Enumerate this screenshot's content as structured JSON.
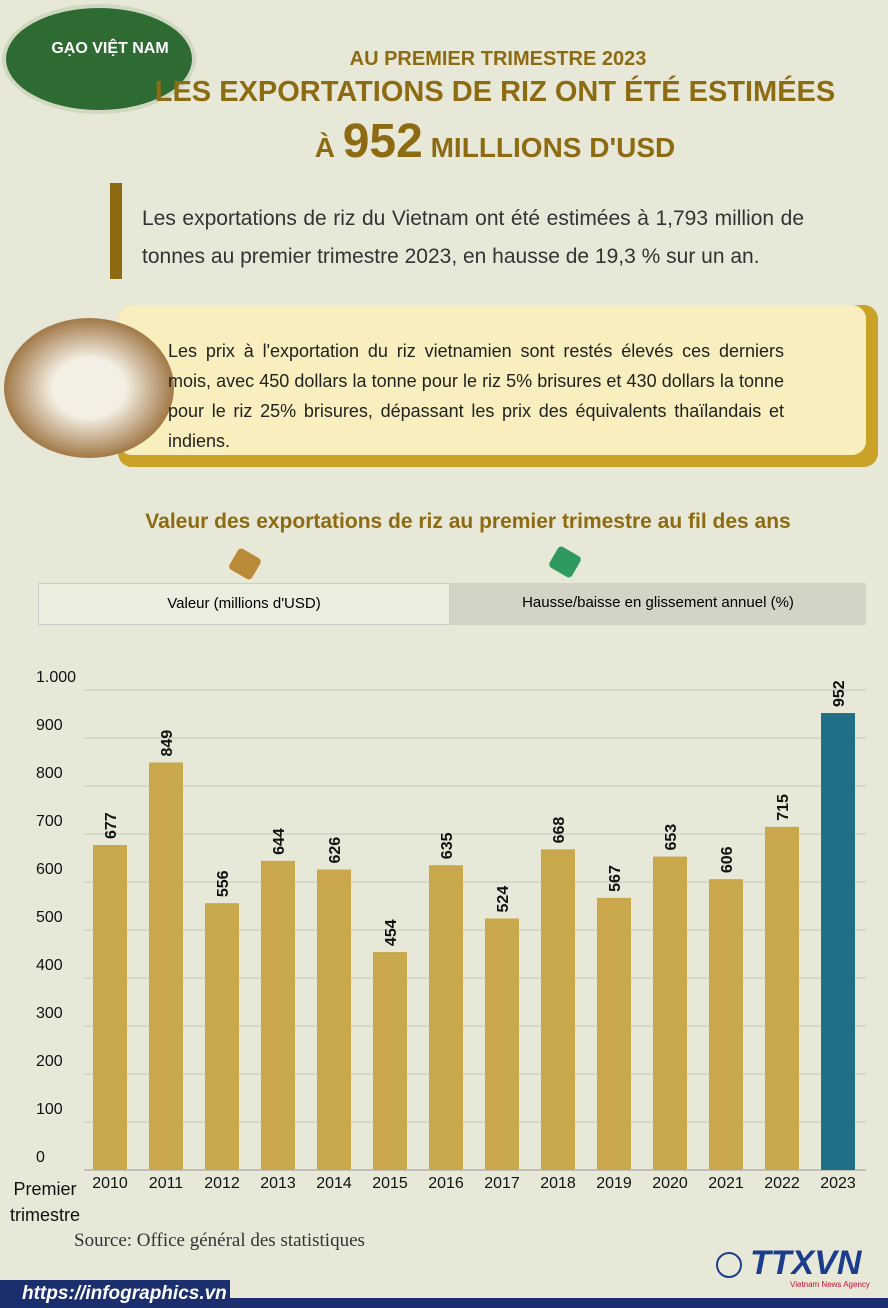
{
  "logo": "GẠO VIỆT NAM",
  "header": {
    "kicker": "AU PREMIER TRIMESTRE 2023",
    "title": "LES EXPORTATIONS DE RIZ ONT ÉTÉ ESTIMÉES",
    "title_prefix": "À",
    "title_number": "952",
    "title_suffix": "MILLLIONS D'USD"
  },
  "paragraphs": [
    "Les exportations de riz du Vietnam ont été estimées à 1,793 million de tonnes au premier trimestre 2023, en hausse de 19,3 % sur un an.",
    "Les prix à l'exportation du riz vietnamien sont restés élevés ces derniers mois, avec 450 dollars la tonne pour le riz 5% brisures et 430 dollars la tonne pour le riz 25% brisures, dépassant les prix des équivalents thaïlandais et indiens."
  ],
  "tabs": [
    "Valeur (millions d'USD)",
    "Hausse/baisse en glissement annuel (%)"
  ],
  "chart_data": {
    "type": "bar",
    "title": "Valeur des exportations de riz au premier trimestre au fil des ans",
    "x_label": "Premier trimestre",
    "categories": [
      "2010",
      "2011",
      "2012",
      "2013",
      "2014",
      "2015",
      "2016",
      "2017",
      "2018",
      "2019",
      "2020",
      "2021",
      "2022",
      "2023"
    ],
    "values": [
      677,
      849,
      556,
      644,
      626,
      454,
      635,
      524,
      668,
      567,
      653,
      606,
      715,
      952
    ],
    "colors": [
      "#c9a84c",
      "#c9a84c",
      "#c9a84c",
      "#c9a84c",
      "#c9a84c",
      "#c9a84c",
      "#c9a84c",
      "#c9a84c",
      "#c9a84c",
      "#c9a84c",
      "#c9a84c",
      "#c9a84c",
      "#c9a84c",
      "#1f6f88"
    ],
    "ylim": [
      0,
      1000
    ],
    "yticks": [
      0,
      100,
      200,
      300,
      400,
      500,
      600,
      700,
      800,
      900,
      {
        "value": 1000,
        "label": "1.000"
      }
    ],
    "grid": true
  },
  "source": "Source: Office général des statistiques",
  "footer_url": "https://infographics.vn",
  "brand": "TTXVN",
  "brand_sub": "Vietnam News Agency"
}
